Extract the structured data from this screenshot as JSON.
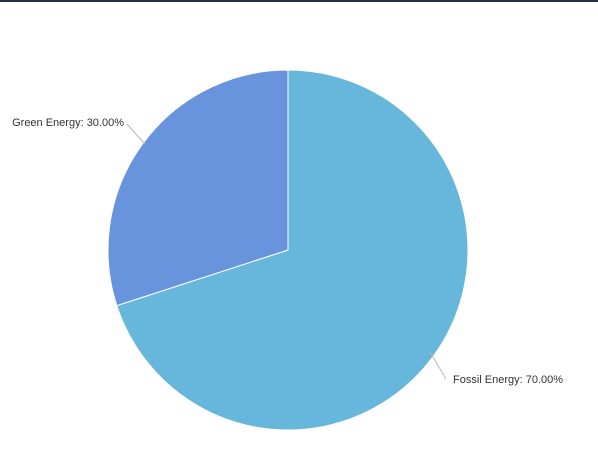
{
  "chart_data": {
    "type": "pie",
    "title": "",
    "start_angle_deg": 0,
    "direction": "clockwise",
    "slices": [
      {
        "label": "Fossil Energy",
        "value": 70,
        "display": "Fossil Energy: 70.00%",
        "color": "#67b7dc"
      },
      {
        "label": "Green Energy",
        "value": 30,
        "display": "Green Energy: 30.00%",
        "color": "#6794dc"
      }
    ],
    "label_placement": "outside",
    "legend": "none"
  }
}
